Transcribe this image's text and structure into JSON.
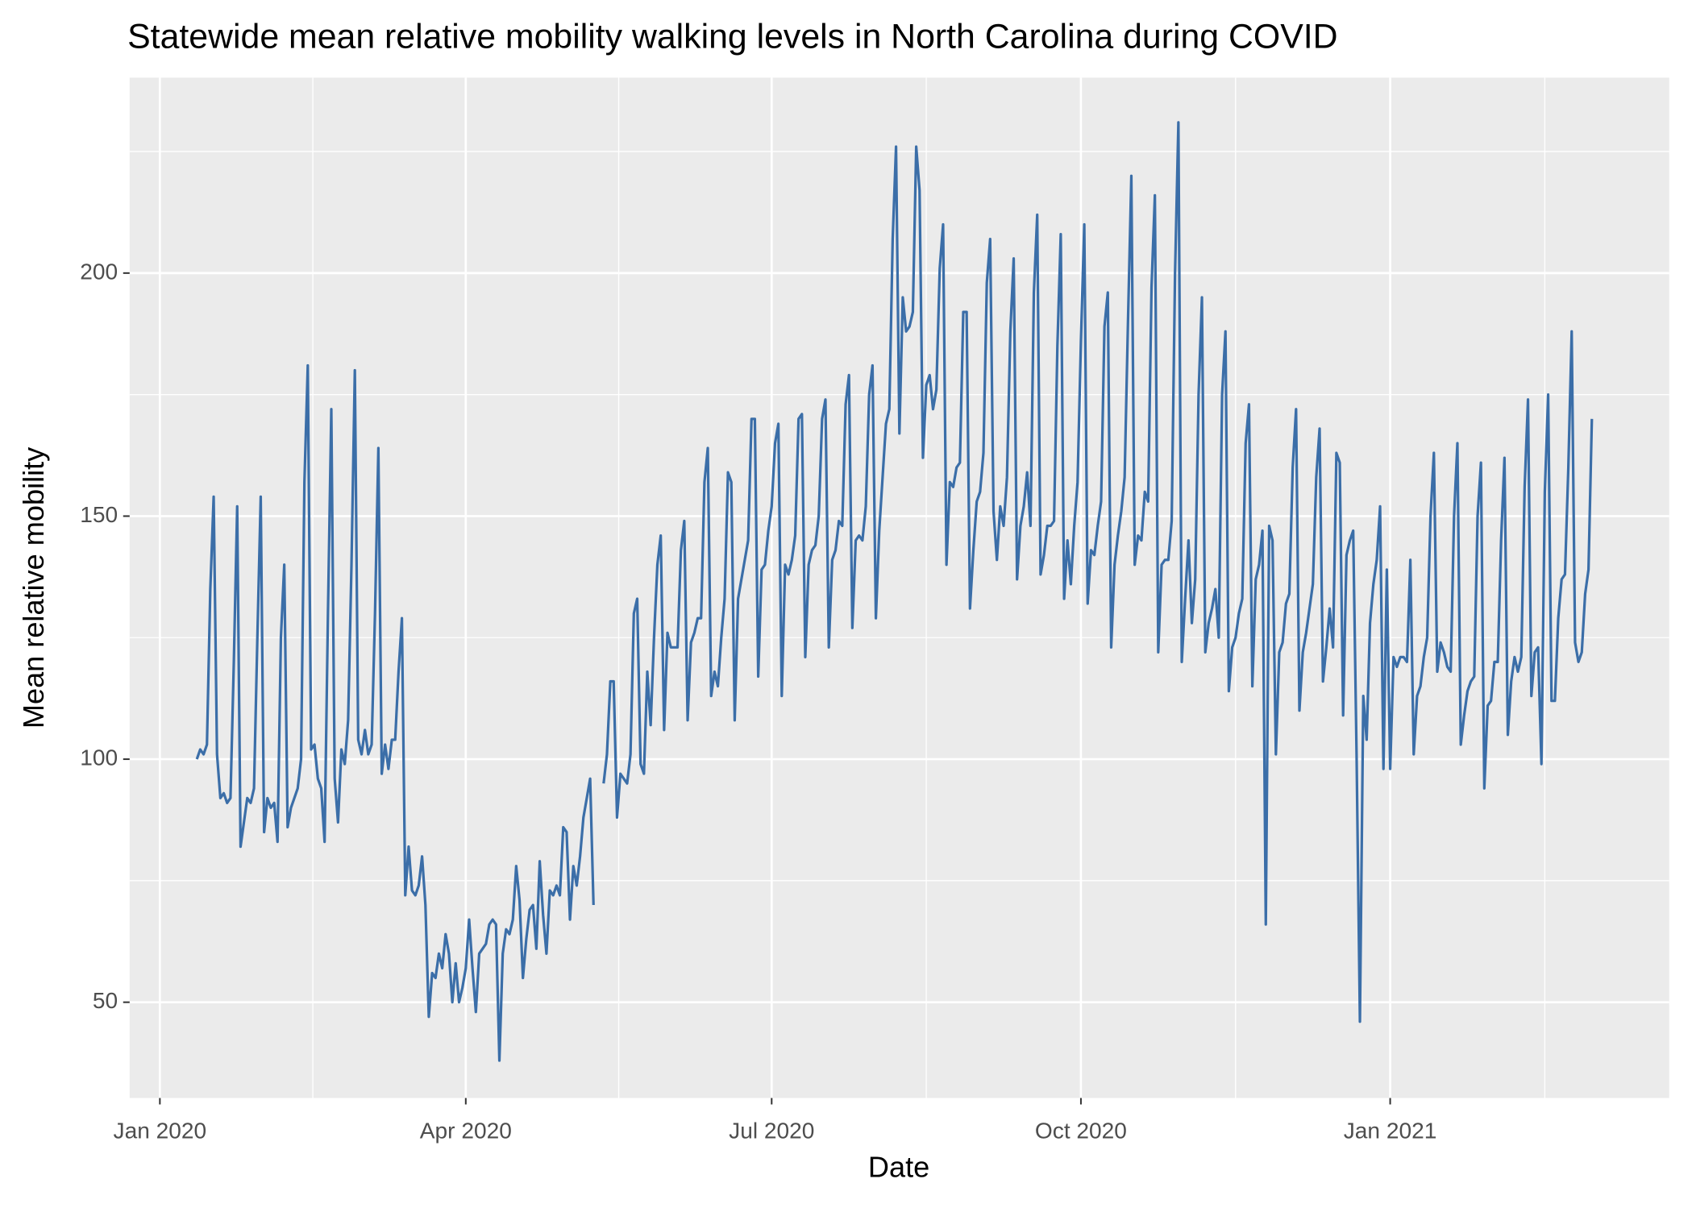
{
  "chart_data": {
    "type": "line",
    "title": "Statewide mean relative mobility walking levels in North Carolina during COVID",
    "x_label": "Date",
    "y_label": "Mean relative mobility",
    "xlim": [
      -9,
      449
    ],
    "xticks": [
      {
        "value": 0,
        "label": "Jan 2020"
      },
      {
        "value": 91,
        "label": "Apr 2020"
      },
      {
        "value": 182,
        "label": "Jul 2020"
      },
      {
        "value": 274,
        "label": "Oct 2020"
      },
      {
        "value": 366,
        "label": "Jan 2021"
      }
    ],
    "ylim": [
      30.3,
      240.2
    ],
    "yticks": [
      50,
      100,
      150,
      200
    ],
    "grid": true,
    "x": [
      11,
      12,
      13,
      14,
      15,
      16,
      17,
      18,
      19,
      20,
      21,
      22,
      23,
      24,
      25,
      26,
      27,
      28,
      29,
      30,
      31,
      32,
      33,
      34,
      35,
      36,
      37,
      38,
      39,
      40,
      41,
      42,
      43,
      44,
      45,
      46,
      47,
      48,
      49,
      50,
      51,
      52,
      53,
      54,
      55,
      56,
      57,
      58,
      59,
      60,
      61,
      62,
      63,
      64,
      65,
      66,
      67,
      68,
      69,
      70,
      71,
      72,
      73,
      74,
      75,
      76,
      77,
      78,
      79,
      80,
      81,
      82,
      83,
      84,
      85,
      86,
      87,
      88,
      89,
      90,
      91,
      92,
      93,
      94,
      95,
      96,
      97,
      98,
      99,
      100,
      101,
      102,
      103,
      104,
      105,
      106,
      107,
      108,
      109,
      110,
      111,
      112,
      113,
      114,
      115,
      116,
      117,
      118,
      119,
      120,
      121,
      122,
      123,
      124,
      125,
      126,
      127,
      128,
      129,
      130,
      131,
      132,
      133,
      134,
      135,
      136,
      137,
      138,
      139,
      140,
      141,
      142,
      143,
      144,
      145,
      146,
      147,
      148,
      149,
      150,
      151,
      152,
      153,
      154,
      155,
      156,
      157,
      158,
      159,
      160,
      161,
      162,
      163,
      164,
      165,
      166,
      167,
      168,
      169,
      170,
      171,
      172,
      173,
      174,
      175,
      176,
      177,
      178,
      179,
      180,
      181,
      182,
      183,
      184,
      185,
      186,
      187,
      188,
      189,
      190,
      191,
      192,
      193,
      194,
      195,
      196,
      197,
      198,
      199,
      200,
      201,
      202,
      203,
      204,
      205,
      206,
      207,
      208,
      209,
      210,
      211,
      212,
      213,
      214,
      215,
      216,
      217,
      218,
      219,
      220,
      221,
      222,
      223,
      224,
      225,
      226,
      227,
      228,
      229,
      230,
      231,
      232,
      233,
      234,
      235,
      236,
      237,
      238,
      239,
      240,
      241,
      242,
      243,
      244,
      245,
      246,
      247,
      248,
      249,
      250,
      251,
      252,
      253,
      254,
      255,
      256,
      257,
      258,
      259,
      260,
      261,
      262,
      263,
      264,
      265,
      266,
      267,
      268,
      269,
      270,
      271,
      272,
      273,
      274,
      275,
      276,
      277,
      278,
      279,
      280,
      281,
      282,
      283,
      284,
      285,
      286,
      287,
      288,
      289,
      290,
      291,
      292,
      293,
      294,
      295,
      296,
      297,
      298,
      299,
      300,
      301,
      302,
      303,
      304,
      305,
      306,
      307,
      308,
      309,
      310,
      311,
      312,
      313,
      314,
      315,
      316,
      317,
      318,
      319,
      320,
      321,
      322,
      323,
      324,
      325,
      326,
      327,
      328,
      329,
      330,
      331,
      332,
      333,
      334,
      335,
      336,
      337,
      338,
      339,
      340,
      341,
      342,
      343,
      344,
      345,
      346,
      347,
      348,
      349,
      350,
      351,
      352,
      353,
      354,
      355,
      356,
      357,
      358,
      359,
      360,
      361,
      362,
      363,
      364,
      365,
      366,
      367,
      368,
      369,
      370,
      371,
      372,
      373,
      374,
      375,
      376,
      377,
      378,
      379,
      380,
      381,
      382,
      383,
      384,
      385,
      386,
      387,
      388,
      389,
      390,
      391,
      392,
      393,
      394,
      395,
      396,
      397,
      398,
      399,
      400,
      401,
      402,
      403,
      404,
      405,
      406,
      407,
      408,
      409,
      410,
      411,
      412,
      413,
      414,
      415,
      416,
      417,
      418,
      419,
      420,
      421,
      422,
      423,
      424,
      425,
      426
    ],
    "series": [
      {
        "color": "#3b6ea8",
        "values": [
          100,
          102,
          101,
          103,
          135,
          154,
          101,
          92,
          93,
          91,
          92,
          120,
          152,
          82,
          87,
          92,
          91,
          94,
          125,
          154,
          85,
          92,
          90,
          91,
          83,
          125,
          140,
          86,
          90,
          92,
          94,
          100,
          157,
          181,
          102,
          103,
          96,
          94,
          83,
          130,
          172,
          96,
          87,
          102,
          99,
          108,
          140,
          180,
          104,
          101,
          106,
          101,
          103,
          130,
          164,
          97,
          103,
          98,
          104,
          104,
          118,
          129,
          72,
          82,
          73,
          72,
          74,
          80,
          70,
          47,
          56,
          55,
          60,
          57,
          64,
          60,
          50,
          58,
          50,
          53,
          57,
          67,
          57,
          48,
          60,
          61,
          62,
          66,
          67,
          66,
          38,
          60,
          65,
          64,
          67,
          78,
          71,
          55,
          63,
          69,
          70,
          61,
          79,
          68,
          60,
          73,
          72,
          74,
          72,
          86,
          85,
          67,
          78,
          74,
          80,
          88,
          92,
          96,
          70,
          null,
          null,
          95,
          101,
          116,
          116,
          88,
          97,
          96,
          95,
          101,
          130,
          133,
          99,
          97,
          118,
          107,
          125,
          140,
          146,
          106,
          126,
          123,
          123,
          123,
          143,
          149,
          108,
          124,
          126,
          129,
          129,
          157,
          164,
          113,
          118,
          115,
          125,
          133,
          159,
          157,
          108,
          133,
          137,
          141,
          145,
          170,
          170,
          117,
          139,
          140,
          147,
          152,
          165,
          169,
          113,
          140,
          138,
          141,
          146,
          170,
          171,
          121,
          140,
          143,
          144,
          150,
          170,
          174,
          123,
          141,
          143,
          149,
          148,
          173,
          179,
          127,
          145,
          146,
          145,
          152,
          175,
          181,
          129,
          147,
          158,
          169,
          172,
          207,
          226,
          167,
          195,
          188,
          189,
          192,
          226,
          217,
          162,
          177,
          179,
          172,
          176,
          201,
          210,
          140,
          157,
          156,
          160,
          161,
          192,
          192,
          131,
          143,
          153,
          155,
          163,
          198,
          207,
          151,
          141,
          152,
          148,
          158,
          188,
          203,
          137,
          148,
          152,
          159,
          148,
          196,
          212,
          138,
          142,
          148,
          148,
          149,
          185,
          208,
          133,
          145,
          136,
          148,
          157,
          186,
          210,
          132,
          143,
          142,
          148,
          153,
          189,
          196,
          123,
          140,
          146,
          151,
          158,
          190,
          220,
          140,
          146,
          145,
          155,
          153,
          197,
          216,
          122,
          140,
          141,
          141,
          149,
          200,
          231,
          120,
          133,
          145,
          128,
          137,
          175,
          195,
          122,
          128,
          131,
          135,
          125,
          175,
          188,
          114,
          123,
          125,
          130,
          133,
          165,
          173,
          115,
          137,
          140,
          147,
          66,
          148,
          145,
          101,
          122,
          124,
          132,
          134,
          160,
          172,
          110,
          122,
          126,
          131,
          136,
          158,
          168,
          116,
          123,
          131,
          123,
          163,
          161,
          109,
          142,
          145,
          147,
          101,
          46,
          113,
          104,
          128,
          136,
          141,
          152,
          98,
          139,
          98,
          121,
          119,
          121,
          121,
          120,
          141,
          101,
          113,
          115,
          121,
          125,
          150,
          163,
          118,
          124,
          122,
          119,
          118,
          150,
          165,
          103,
          109,
          114,
          116,
          117,
          150,
          161,
          94,
          111,
          112,
          120,
          120,
          145,
          162,
          105,
          116,
          121,
          118,
          121,
          156,
          174,
          113,
          122,
          123,
          99,
          155,
          175,
          112,
          112,
          129,
          137,
          138,
          160,
          188,
          124,
          120,
          122,
          134,
          139,
          170
        ]
      }
    ]
  }
}
